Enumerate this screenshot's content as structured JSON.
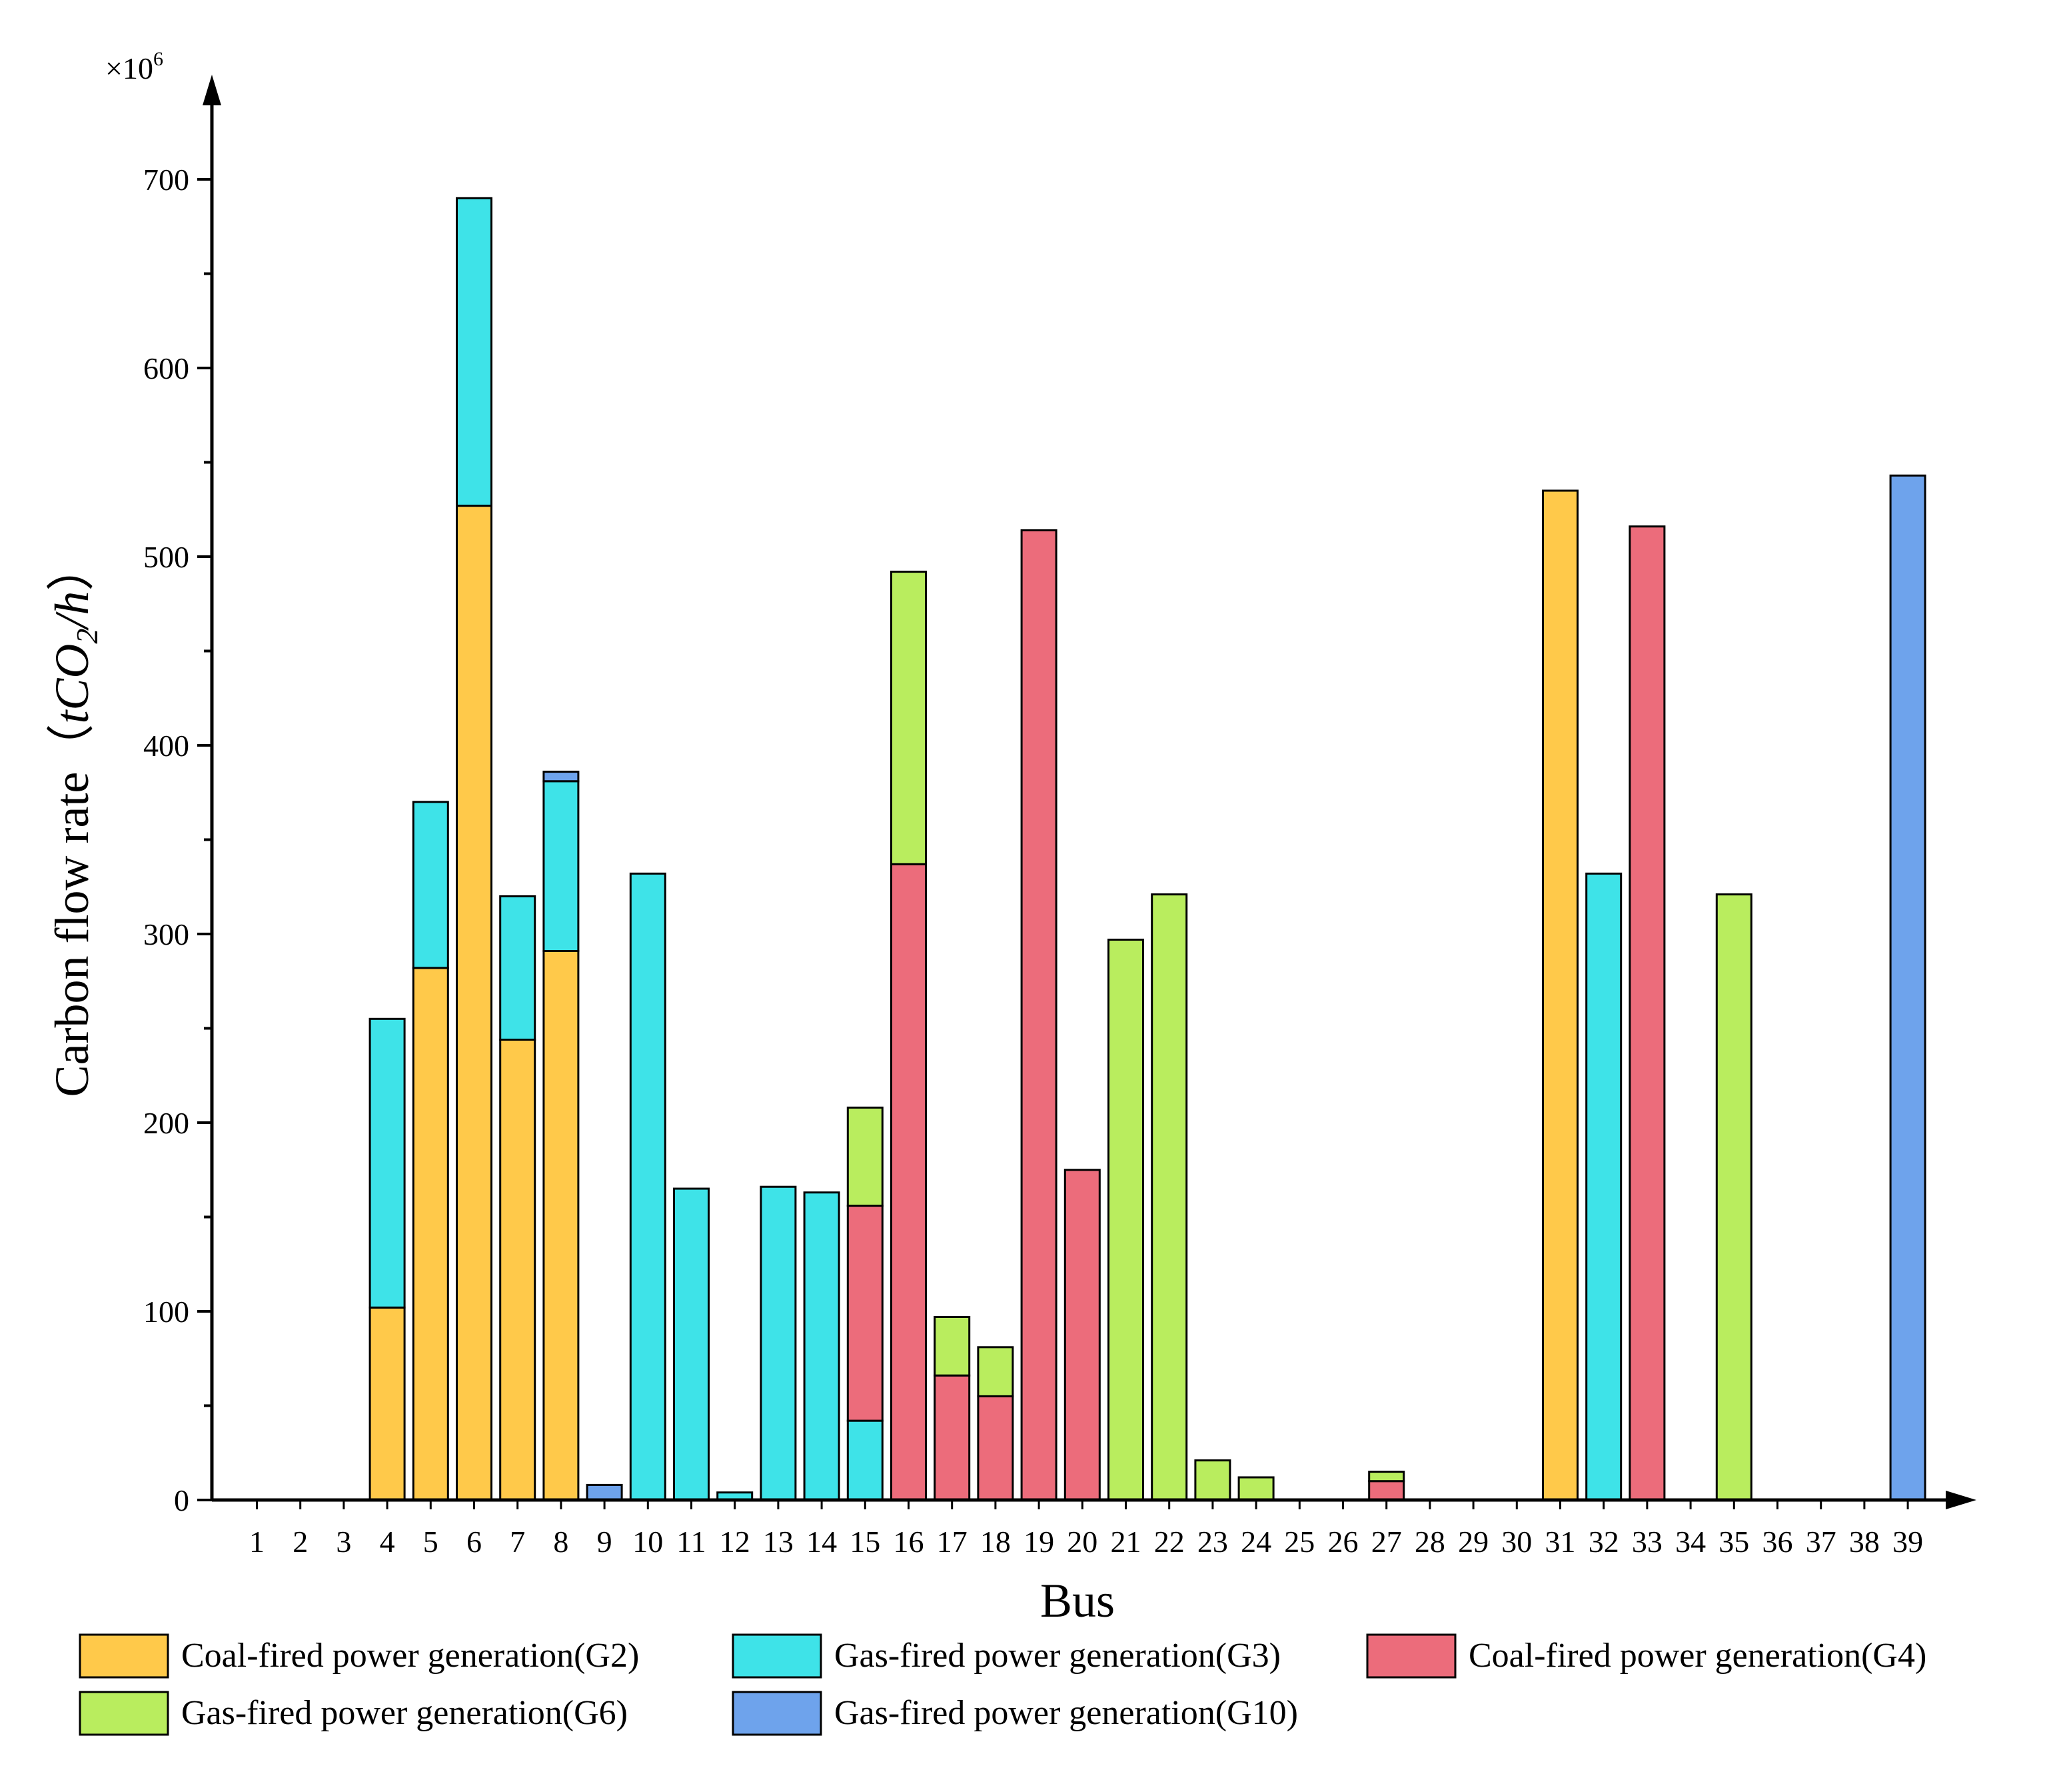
{
  "chart_data": {
    "type": "bar",
    "stacked": true,
    "title": "",
    "xlabel": "Bus",
    "ylabel": "Carbon flow rate（tCO2/h）",
    "y_multiplier": "×10",
    "y_multiplier_exp": "6",
    "ylim": [
      0,
      760
    ],
    "yticks": [
      "0",
      "100",
      "200",
      "300",
      "400",
      "500",
      "600",
      "700"
    ],
    "grid": false,
    "legend_position": "bottom",
    "categories": [
      "1",
      "2",
      "3",
      "4",
      "5",
      "6",
      "7",
      "8",
      "9",
      "10",
      "11",
      "12",
      "13",
      "14",
      "15",
      "16",
      "17",
      "18",
      "19",
      "20",
      "21",
      "22",
      "23",
      "24",
      "25",
      "26",
      "27",
      "28",
      "29",
      "30",
      "31",
      "32",
      "33",
      "34",
      "35",
      "36",
      "37",
      "38",
      "39"
    ],
    "series": [
      {
        "name": "Coal-fired power generation(G2)",
        "color": "#FFC94A",
        "values": [
          0,
          0,
          0,
          102,
          282,
          527,
          244,
          291,
          0,
          0,
          0,
          0,
          0,
          0,
          0,
          0,
          0,
          0,
          0,
          0,
          0,
          0,
          0,
          0,
          0,
          0,
          0,
          0,
          0,
          0,
          535,
          0,
          0,
          0,
          0,
          0,
          0,
          0,
          0
        ]
      },
      {
        "name": "Gas-fired power generation(G3)",
        "color": "#3EE3E8",
        "values": [
          0,
          0,
          0,
          153,
          88,
          163,
          76,
          90,
          0,
          332,
          165,
          4,
          166,
          163,
          42,
          0,
          0,
          0,
          0,
          0,
          0,
          0,
          0,
          0,
          0,
          0,
          0,
          0,
          0,
          0,
          0,
          332,
          0,
          0,
          0,
          0,
          0,
          0,
          0
        ]
      },
      {
        "name": "Coal-fired power generation(G4)",
        "color": "#EC6C7B",
        "values": [
          0,
          0,
          0,
          0,
          0,
          0,
          0,
          0,
          0,
          0,
          0,
          0,
          0,
          0,
          114,
          337,
          66,
          55,
          514,
          175,
          0,
          0,
          0,
          0,
          0,
          0,
          10,
          0,
          0,
          0,
          0,
          0,
          516,
          0,
          0,
          0,
          0,
          0,
          0
        ]
      },
      {
        "name": "Gas-fired power generation(G6)",
        "color": "#B9ED5E",
        "values": [
          0,
          0,
          0,
          0,
          0,
          0,
          0,
          0,
          0,
          0,
          0,
          0,
          0,
          0,
          52,
          155,
          31,
          26,
          0,
          0,
          297,
          321,
          21,
          12,
          0,
          0,
          5,
          0,
          0,
          0,
          0,
          0,
          0,
          0,
          321,
          0,
          0,
          0,
          0
        ]
      },
      {
        "name": "Gas-fired power generation(G10)",
        "color": "#6EA3EC",
        "values": [
          0,
          0,
          0,
          0,
          0,
          0,
          0,
          5,
          8,
          0,
          0,
          0,
          0,
          0,
          0,
          0,
          0,
          0,
          0,
          0,
          0,
          0,
          0,
          0,
          0,
          0,
          0,
          0,
          0,
          0,
          0,
          0,
          0,
          0,
          0,
          0,
          0,
          0,
          543
        ]
      }
    ]
  }
}
